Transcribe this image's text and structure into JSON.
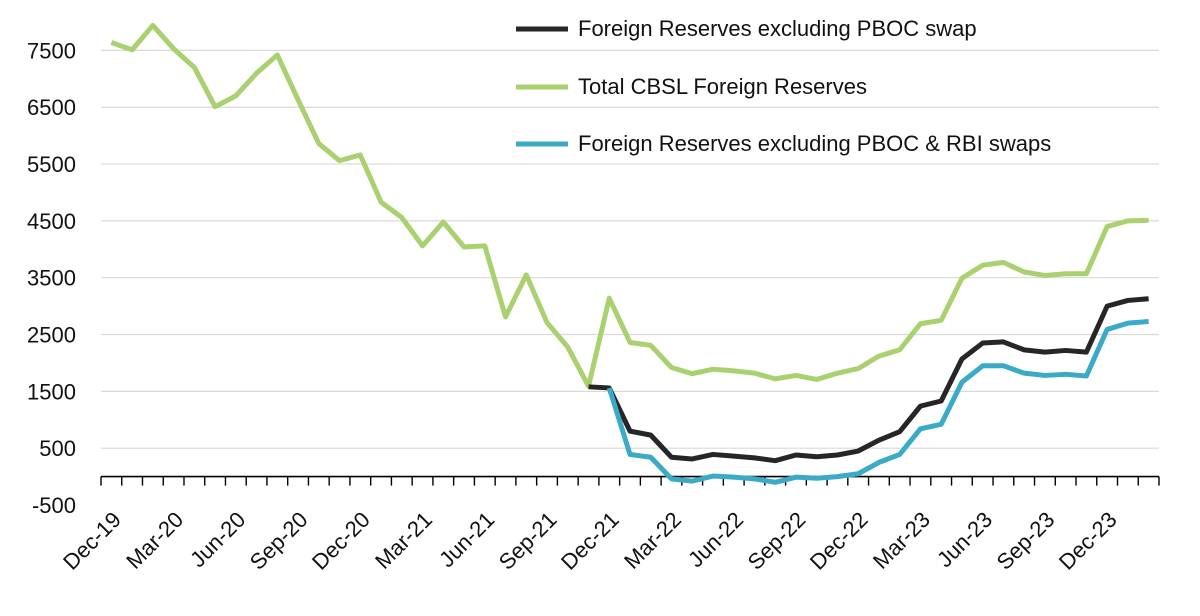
{
  "chart_data": {
    "type": "line",
    "title": "",
    "xlabel": "",
    "ylabel": "",
    "ylim": [
      -500,
      8000
    ],
    "y_ticks": [
      -500,
      500,
      1500,
      2500,
      3500,
      4500,
      5500,
      6500,
      7500
    ],
    "grid": true,
    "legend_position": "top-right",
    "x": [
      "Dec-19",
      "Jan-20",
      "Feb-20",
      "Mar-20",
      "Apr-20",
      "May-20",
      "Jun-20",
      "Jul-20",
      "Aug-20",
      "Sep-20",
      "Oct-20",
      "Nov-20",
      "Dec-20",
      "Jan-21",
      "Feb-21",
      "Mar-21",
      "Apr-21",
      "May-21",
      "Jun-21",
      "Jul-21",
      "Aug-21",
      "Sep-21",
      "Oct-21",
      "Nov-21",
      "Dec-21",
      "Jan-22",
      "Feb-22",
      "Mar-22",
      "Apr-22",
      "May-22",
      "Jun-22",
      "Jul-22",
      "Aug-22",
      "Sep-22",
      "Oct-22",
      "Nov-22",
      "Dec-22",
      "Jan-23",
      "Feb-23",
      "Mar-23",
      "Apr-23",
      "May-23",
      "Jun-23",
      "Jul-23",
      "Aug-23",
      "Sep-23",
      "Oct-23",
      "Nov-23",
      "Dec-23",
      "Jan-24",
      "Feb-24"
    ],
    "x_tick_labels": [
      "Dec-19",
      "Mar-20",
      "Jun-20",
      "Sep-20",
      "Dec-20",
      "Mar-21",
      "Jun-21",
      "Sep-21",
      "Dec-21",
      "Mar-22",
      "Jun-22",
      "Sep-22",
      "Dec-22",
      "Mar-23",
      "Jun-23",
      "Sep-23",
      "Dec-23"
    ],
    "series": [
      {
        "name": "Foreign Reserves excluding PBOC swap",
        "color": "#262626",
        "values": [
          null,
          null,
          null,
          null,
          null,
          null,
          null,
          null,
          null,
          null,
          null,
          null,
          null,
          null,
          null,
          null,
          null,
          null,
          null,
          null,
          null,
          null,
          null,
          1580,
          1560,
          800,
          730,
          340,
          310,
          390,
          360,
          330,
          280,
          380,
          350,
          380,
          450,
          640,
          790,
          1240,
          1330,
          2070,
          2350,
          2370,
          2230,
          2190,
          2220,
          2190,
          3000,
          3100,
          3130
        ]
      },
      {
        "name": "Total CBSL Foreign Reserves",
        "color": "#a9d16f",
        "values": [
          7640,
          7510,
          7940,
          7530,
          7200,
          6510,
          6700,
          7100,
          7420,
          6630,
          5860,
          5560,
          5660,
          4830,
          4560,
          4060,
          4480,
          4040,
          4060,
          2810,
          3550,
          2710,
          2280,
          1590,
          3140,
          2360,
          2310,
          1920,
          1810,
          1890,
          1860,
          1820,
          1720,
          1780,
          1710,
          1820,
          1900,
          2120,
          2230,
          2690,
          2750,
          3490,
          3720,
          3770,
          3600,
          3540,
          3570,
          3570,
          4400,
          4500,
          4510
        ]
      },
      {
        "name": "Foreign Reserves excluding PBOC & RBI swaps",
        "color": "#3aaac7",
        "values": [
          null,
          null,
          null,
          null,
          null,
          null,
          null,
          null,
          null,
          null,
          null,
          null,
          null,
          null,
          null,
          null,
          null,
          null,
          null,
          null,
          null,
          null,
          null,
          null,
          1560,
          390,
          340,
          -40,
          -80,
          10,
          -10,
          -40,
          -100,
          -10,
          -30,
          0,
          50,
          250,
          390,
          840,
          920,
          1660,
          1950,
          1950,
          1820,
          1780,
          1800,
          1770,
          2590,
          2700,
          2730
        ]
      }
    ]
  }
}
